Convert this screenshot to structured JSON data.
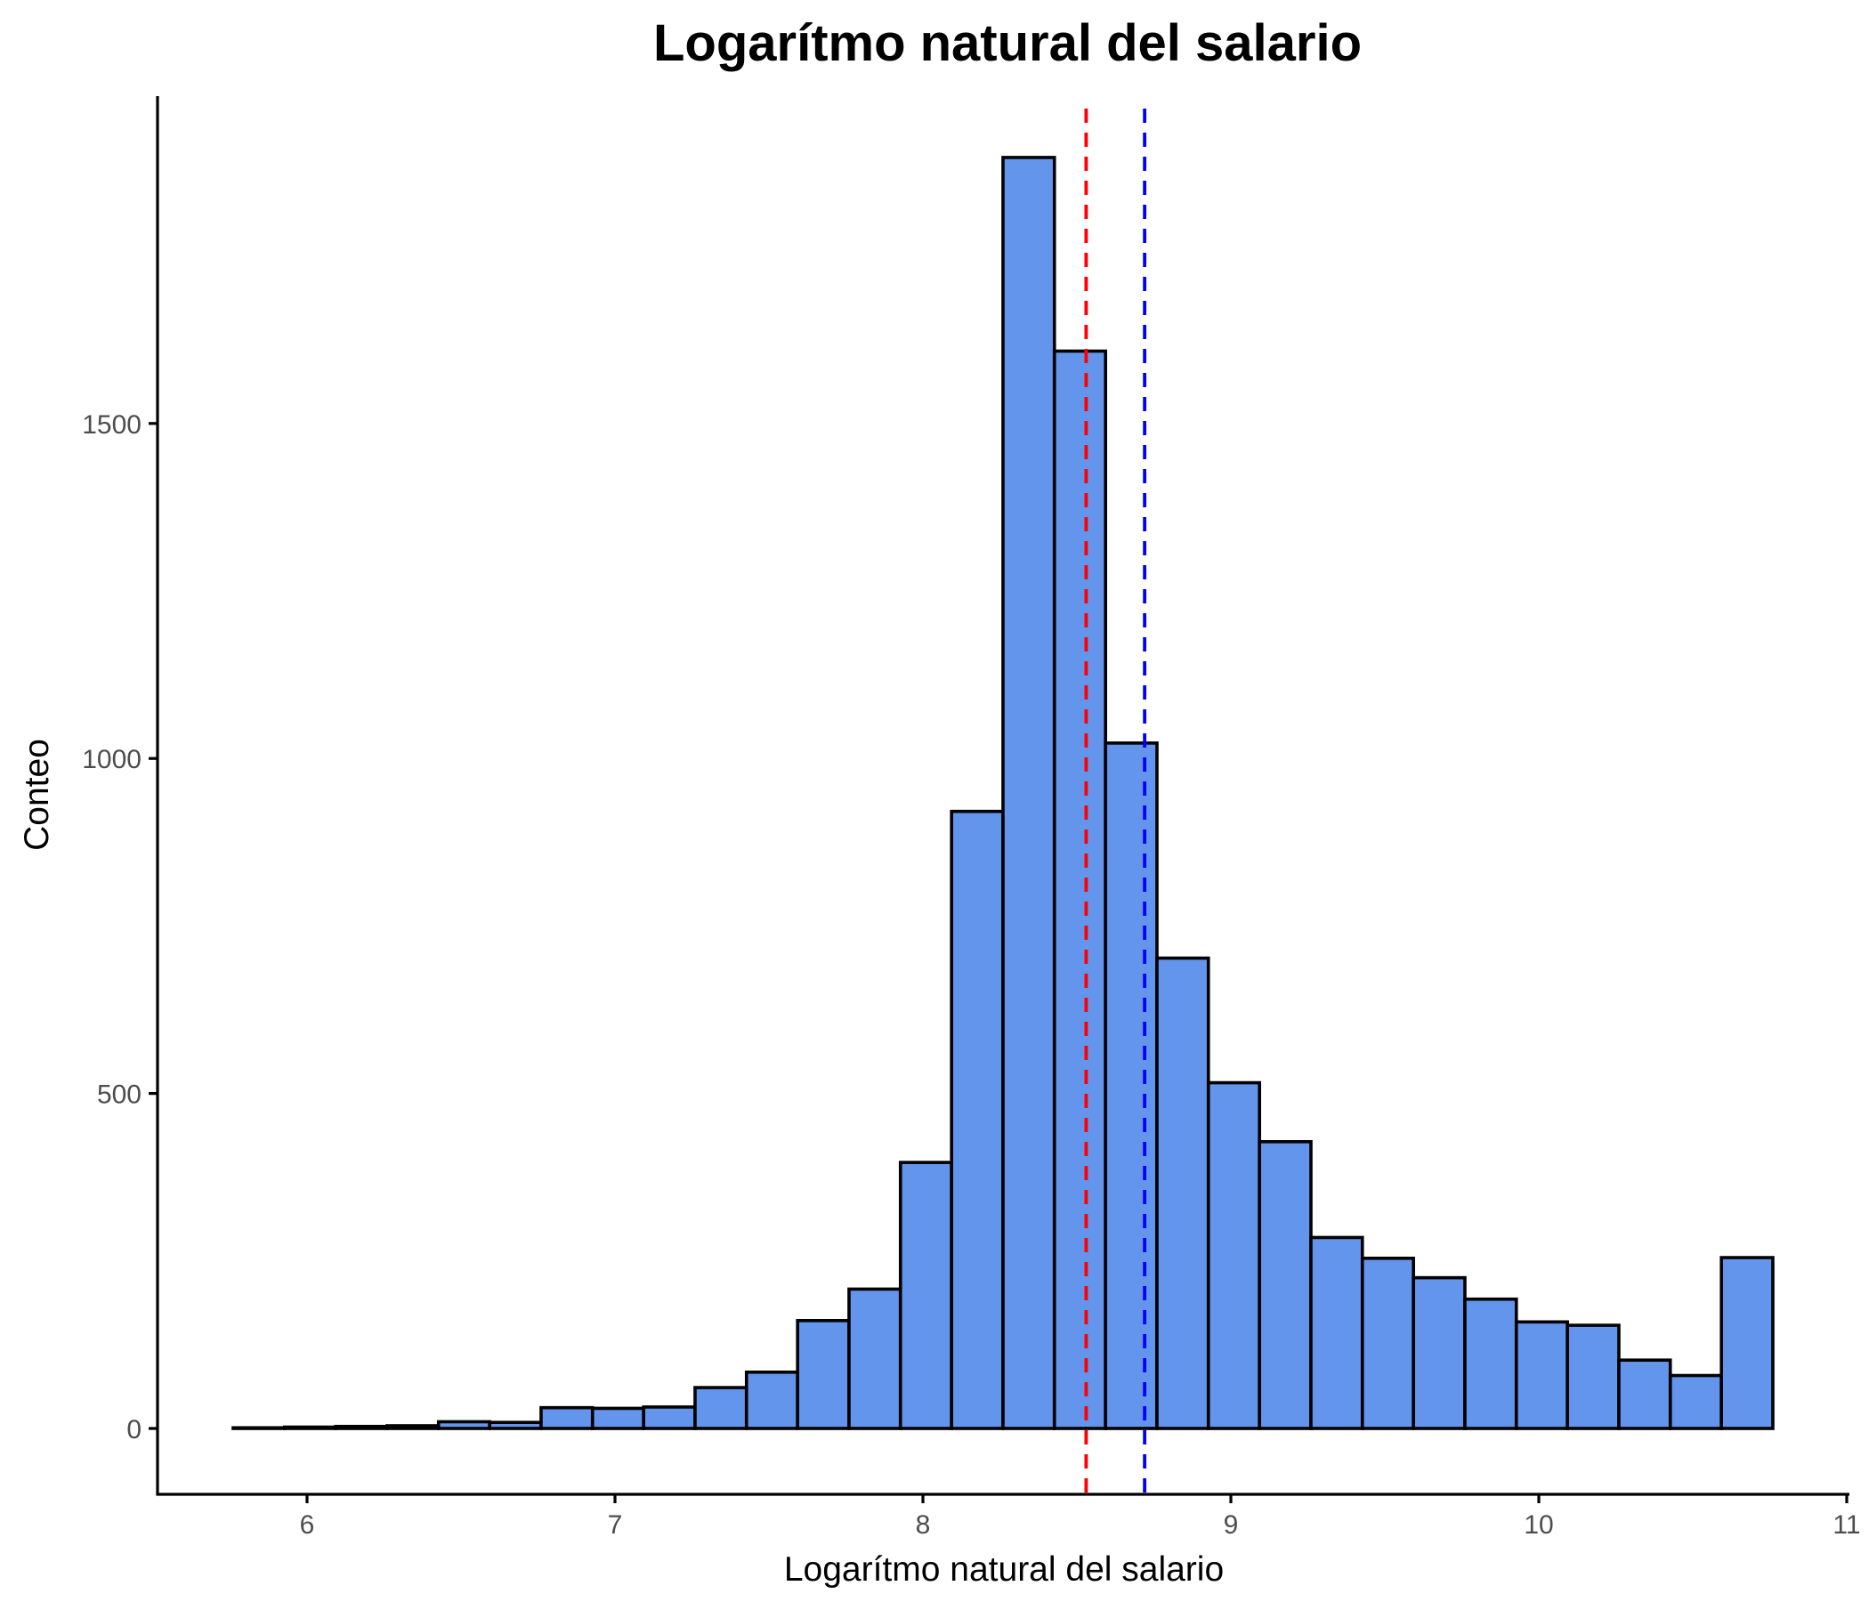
{
  "chart_data": {
    "type": "bar",
    "subtype": "histogram",
    "title": "Logarítmo natural del salario",
    "xlabel": "Logarítmo natural del salario",
    "ylabel": "Conteo",
    "xlim": [
      5.5,
      11.0
    ],
    "ylim": [
      -80,
      1985
    ],
    "x_ticks": [
      6,
      7,
      8,
      9,
      10,
      11
    ],
    "y_ticks": [
      0,
      500,
      1000,
      1500
    ],
    "grid": false,
    "bar_fill": "#6495ed",
    "bar_border": "#000000",
    "bins": [
      {
        "x0": 5.76,
        "x1": 5.927,
        "count": 1
      },
      {
        "x0": 5.927,
        "x1": 6.093,
        "count": 2
      },
      {
        "x0": 6.093,
        "x1": 6.26,
        "count": 3
      },
      {
        "x0": 6.26,
        "x1": 6.427,
        "count": 4
      },
      {
        "x0": 6.427,
        "x1": 6.593,
        "count": 10
      },
      {
        "x0": 6.593,
        "x1": 6.76,
        "count": 9
      },
      {
        "x0": 6.76,
        "x1": 6.927,
        "count": 31
      },
      {
        "x0": 6.927,
        "x1": 7.093,
        "count": 30
      },
      {
        "x0": 7.093,
        "x1": 7.26,
        "count": 32
      },
      {
        "x0": 7.26,
        "x1": 7.427,
        "count": 61
      },
      {
        "x0": 7.427,
        "x1": 7.593,
        "count": 84
      },
      {
        "x0": 7.593,
        "x1": 7.76,
        "count": 161
      },
      {
        "x0": 7.76,
        "x1": 7.927,
        "count": 208
      },
      {
        "x0": 7.927,
        "x1": 8.093,
        "count": 397
      },
      {
        "x0": 8.093,
        "x1": 8.26,
        "count": 921
      },
      {
        "x0": 8.26,
        "x1": 8.427,
        "count": 1897
      },
      {
        "x0": 8.427,
        "x1": 8.593,
        "count": 1608
      },
      {
        "x0": 8.593,
        "x1": 8.76,
        "count": 1023
      },
      {
        "x0": 8.76,
        "x1": 8.927,
        "count": 702
      },
      {
        "x0": 8.927,
        "x1": 9.093,
        "count": 516
      },
      {
        "x0": 9.093,
        "x1": 9.26,
        "count": 428
      },
      {
        "x0": 9.26,
        "x1": 9.427,
        "count": 285
      },
      {
        "x0": 9.427,
        "x1": 9.593,
        "count": 254
      },
      {
        "x0": 9.593,
        "x1": 9.76,
        "count": 225
      },
      {
        "x0": 9.76,
        "x1": 9.927,
        "count": 193
      },
      {
        "x0": 9.927,
        "x1": 10.093,
        "count": 159
      },
      {
        "x0": 10.093,
        "x1": 10.26,
        "count": 154
      },
      {
        "x0": 10.26,
        "x1": 10.427,
        "count": 102
      },
      {
        "x0": 10.427,
        "x1": 10.593,
        "count": 79
      },
      {
        "x0": 10.593,
        "x1": 10.76,
        "count": 255
      }
    ],
    "reference_lines": [
      {
        "x": 8.53,
        "color": "#ff0000",
        "style": "dashed"
      },
      {
        "x": 8.72,
        "color": "#0000ff",
        "style": "dashed"
      }
    ]
  }
}
